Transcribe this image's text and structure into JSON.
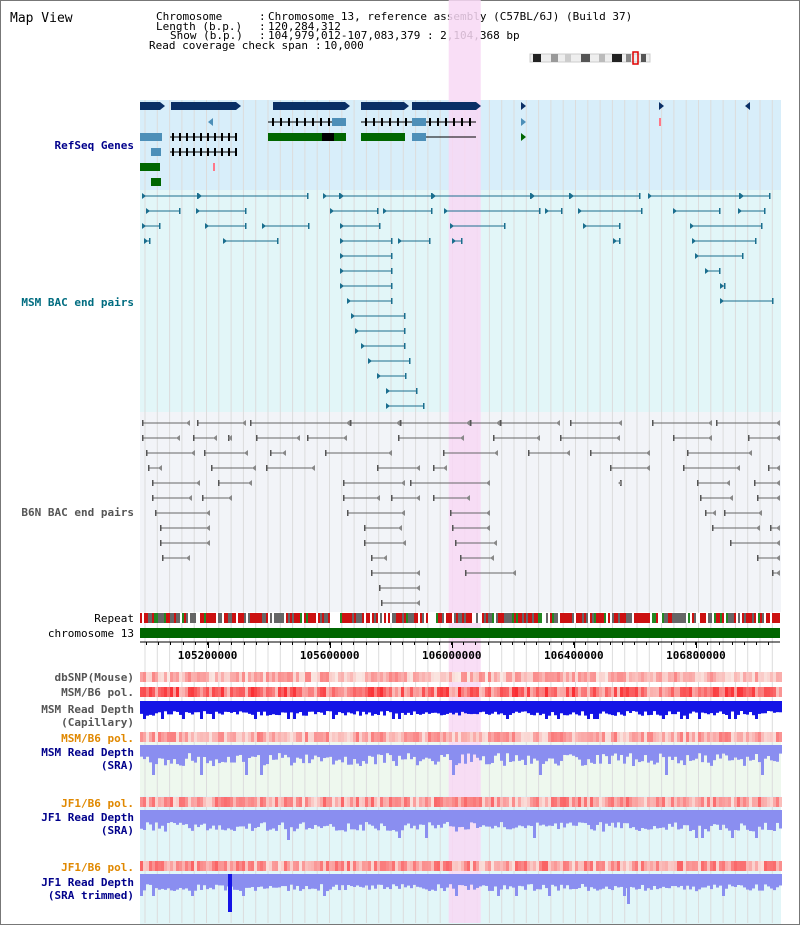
{
  "page": {
    "title": "Map View"
  },
  "info": {
    "chromosome_key": "Chromosome",
    "chromosome_val": "Chromosome 13, reference assembly (C57BL/6J) (Build 37)",
    "length_key": "Length (b.p.)",
    "length_val": "120,284,312",
    "show_key": "Show (b.p.)",
    "show_val": "104,979,012-107,083,379 : 2,104,368 bp",
    "span_key": "Read coverage check span",
    "span_val": "10,000"
  },
  "tracks": {
    "refseq": "RefSeq Genes",
    "msm_bac": "MSM BAC end pairs",
    "b6n_bac": "B6N BAC end pairs",
    "repeat": "Repeat",
    "chromosome": "chromosome 13",
    "dbsnp": "dbSNP(Mouse)",
    "msm_b6_pol": "MSM/B6 pol.",
    "msm_depth_cap_1": "MSM Read Depth",
    "msm_depth_cap_2": "(Capillary)",
    "msm_b6_pol_sra": "MSM/B6 pol.",
    "msm_depth_sra_1": "MSM Read Depth",
    "msm_depth_sra_2": "(SRA)",
    "jf1_b6_pol": "JF1/B6 pol.",
    "jf1_depth_sra_1": "JF1 Read Depth",
    "jf1_depth_sra_2": "(SRA)",
    "jf1_b6_pol_tr": "JF1/B6 pol.",
    "jf1_depth_tr_1": "JF1 Read Depth",
    "jf1_depth_tr_2": "(SRA trimmed)"
  },
  "axis": {
    "start": 104979012,
    "end": 107083379,
    "ticks": [
      105200000,
      105600000,
      106000000,
      106400000,
      106800000
    ],
    "tick_labels": [
      "105200000",
      "105600000",
      "106000000",
      "106400000",
      "106800000"
    ]
  },
  "highlight": {
    "start": 105990000,
    "end": 106095000
  },
  "colors": {
    "highlight": "#f8d8f4",
    "refseq_bg": "#d8eefa",
    "msm_bg": "#e2f6f8",
    "b6n_bg": "#f2f4f8",
    "gene_dark": "#0a2f66",
    "gene_light": "#4d8fb8",
    "gene_green": "#006600",
    "msm_line": "#1a6e8e",
    "b6n_line": "#777777",
    "chrom": "#006600",
    "depth_dark": "#1414e6",
    "depth_light": "#8a8ef0",
    "label_blue": "#00008b",
    "label_teal": "#006c80",
    "label_gray": "#555555",
    "label_orange": "#e08800"
  }
}
